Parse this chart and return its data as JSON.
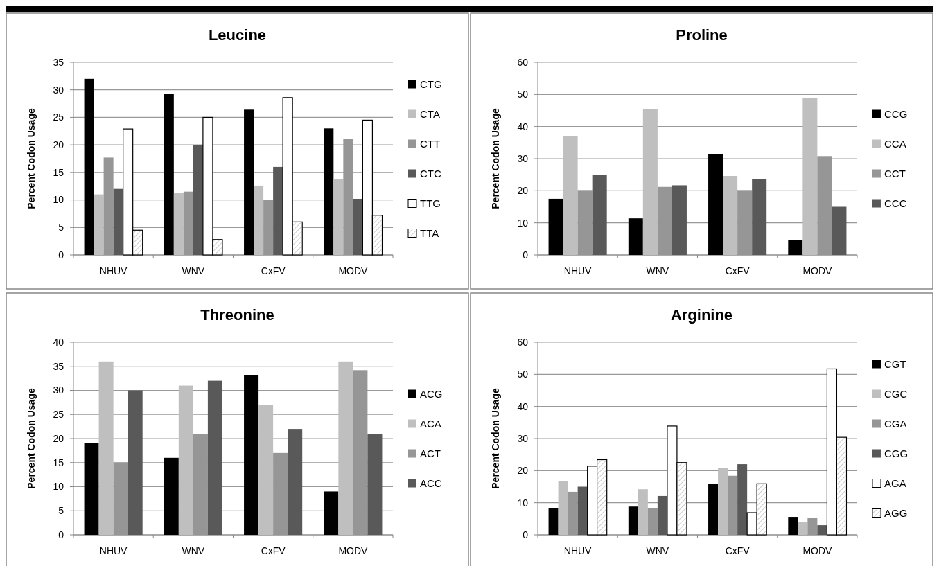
{
  "chart_data": [
    {
      "type": "bar",
      "title": "Leucine",
      "ylabel": "Percent Codon Usage",
      "categories": [
        "NHUV",
        "WNV",
        "CxFV",
        "MODV"
      ],
      "ylim": [
        0,
        35
      ],
      "yticks": [
        0,
        5,
        10,
        15,
        20,
        25,
        30,
        35
      ],
      "grid": "y",
      "legend": "right",
      "series": [
        {
          "name": "CTG",
          "color": "#000000",
          "values": [
            32,
            29.3,
            26.4,
            23
          ]
        },
        {
          "name": "CTA",
          "color": "#bfbfbf",
          "values": [
            11,
            11.2,
            12.6,
            13.8
          ]
        },
        {
          "name": "CTT",
          "color": "#969696",
          "values": [
            17.7,
            11.5,
            10,
            21.1
          ]
        },
        {
          "name": "CTC",
          "color": "#595959",
          "values": [
            12,
            20,
            16,
            10.2
          ]
        },
        {
          "name": "TTG",
          "color": "#ffffff",
          "values": [
            22.9,
            25,
            28.6,
            24.5
          ]
        },
        {
          "name": "TTA",
          "color": "#ffffff",
          "values": [
            4.5,
            2.8,
            6,
            7.2
          ]
        }
      ]
    },
    {
      "type": "bar",
      "title": "Proline",
      "ylabel": "Percent Codon Usage",
      "categories": [
        "NHUV",
        "WNV",
        "CxFV",
        "MODV"
      ],
      "ylim": [
        0,
        60
      ],
      "yticks": [
        0,
        10,
        20,
        30,
        40,
        50,
        60
      ],
      "grid": "y",
      "legend": "right",
      "series": [
        {
          "name": "CCG",
          "color": "#000000",
          "values": [
            17.5,
            11.4,
            31.3,
            4.7
          ]
        },
        {
          "name": "CCA",
          "color": "#bfbfbf",
          "values": [
            37,
            45.4,
            24.6,
            49
          ]
        },
        {
          "name": "CCT",
          "color": "#969696",
          "values": [
            20.2,
            21.2,
            20.2,
            30.8
          ]
        },
        {
          "name": "CCC",
          "color": "#595959",
          "values": [
            25,
            21.7,
            23.7,
            15
          ]
        }
      ]
    },
    {
      "type": "bar",
      "title": "Threonine",
      "ylabel": "Percent Codon Usage",
      "categories": [
        "NHUV",
        "WNV",
        "CxFV",
        "MODV"
      ],
      "ylim": [
        0,
        40
      ],
      "yticks": [
        0,
        5,
        10,
        15,
        20,
        25,
        30,
        35,
        40
      ],
      "grid": "y",
      "legend": "right",
      "series": [
        {
          "name": "ACG",
          "color": "#000000",
          "values": [
            19,
            16,
            33.2,
            9
          ]
        },
        {
          "name": "ACA",
          "color": "#bfbfbf",
          "values": [
            36,
            31,
            27,
            36
          ]
        },
        {
          "name": "ACT",
          "color": "#969696",
          "values": [
            15,
            21,
            17,
            34.2
          ]
        },
        {
          "name": "ACC",
          "color": "#595959",
          "values": [
            30,
            32,
            22,
            21
          ]
        }
      ]
    },
    {
      "type": "bar",
      "title": "Arginine",
      "ylabel": "Percent Codon Usage",
      "categories": [
        "NHUV",
        "WNV",
        "CxFV",
        "MODV"
      ],
      "ylim": [
        0,
        60
      ],
      "yticks": [
        0,
        10,
        20,
        30,
        40,
        50,
        60
      ],
      "grid": "y",
      "legend": "right",
      "series": [
        {
          "name": "CGT",
          "color": "#000000",
          "values": [
            8.3,
            8.8,
            15.9,
            5.6
          ]
        },
        {
          "name": "CGC",
          "color": "#bfbfbf",
          "values": [
            16.7,
            14.2,
            20.9,
            3.9
          ]
        },
        {
          "name": "CGA",
          "color": "#969696",
          "values": [
            13.4,
            8.3,
            18.4,
            5.2
          ]
        },
        {
          "name": "CGG",
          "color": "#595959",
          "values": [
            15,
            12.1,
            22,
            3
          ]
        },
        {
          "name": "AGA",
          "color": "#ffffff",
          "values": [
            21.4,
            33.9,
            6.9,
            51.7
          ]
        },
        {
          "name": "AGG",
          "color": "#ffffff",
          "values": [
            23.4,
            22.5,
            15.9,
            30.4
          ]
        }
      ]
    }
  ]
}
